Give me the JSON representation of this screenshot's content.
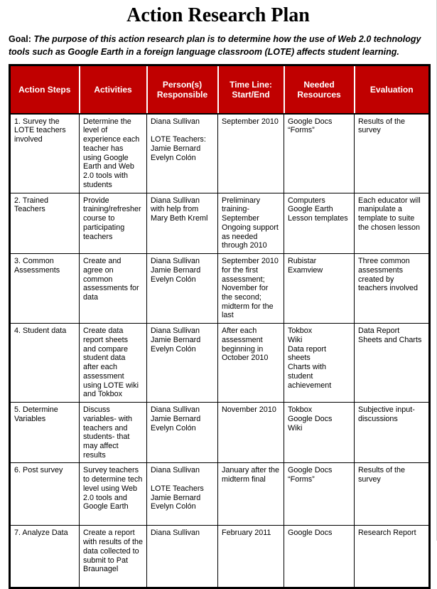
{
  "page": {
    "title": "Action Research Plan",
    "goal_label": "Goal:",
    "goal_text": "The purpose of this action research plan is to determine how the use of Web 2.0 technology tools such as Google Earth in a foreign language classroom (LOTE) affects student learning."
  },
  "table": {
    "header_bg": "#c00000",
    "columns": [
      "Action Steps",
      "Activities",
      "Person(s) Responsible",
      "Time Line: Start/End",
      "Needed Resources",
      "Evaluation"
    ],
    "rows": [
      {
        "cells": [
          "1. Survey the LOTE teachers involved",
          "Determine the level of experience each teacher has using Google Earth and Web 2.0 tools with students",
          "Diana Sullivan\n\nLOTE Teachers:\nJamie Bernard\nEvelyn Colón",
          "September 2010",
          "Google Docs\n“Forms”",
          "Results of the survey"
        ]
      },
      {
        "cells": [
          "2. Trained Teachers",
          "Provide training/refresher course to participating teachers",
          "Diana Sullivan with help from Mary Beth Kreml",
          "Preliminary training-September Ongoing support as needed through 2010",
          "Computers\nGoogle Earth\nLesson templates",
          "Each educator will manipulate a template to suite the chosen lesson"
        ]
      },
      {
        "cells": [
          "3. Common Assessments",
          "Create and agree on common assessments for data",
          "Diana Sullivan\nJamie Bernard\nEvelyn Colón",
          "September 2010 for the first assessment; November for the second; midterm for the last",
          "Rubistar\nExamview",
          "Three common assessments created by teachers involved"
        ]
      },
      {
        "cells": [
          "4. Student data",
          "Create data report sheets and compare student data after each assessment using LOTE wiki and Tokbox",
          "Diana Sullivan\nJamie Bernard\nEvelyn Colón",
          "After each assessment beginning in October 2010",
          "Tokbox\nWiki\nData report sheets\nCharts with student achievement",
          "Data Report Sheets and Charts"
        ]
      },
      {
        "cells": [
          "5. Determine Variables",
          "Discuss variables- with teachers and students-  that may affect results",
          "Diana Sullivan\nJamie Bernard\nEvelyn Colón",
          "November 2010",
          "Tokbox\nGoogle Docs\nWiki",
          "Subjective input-discussions"
        ]
      },
      {
        "cells": [
          "6. Post survey",
          "Survey teachers to determine tech level using Web 2.0 tools and Google Earth",
          "Diana Sullivan\n\nLOTE Teachers\nJamie Bernard\nEvelyn Colón",
          "January after the midterm final",
          "Google Docs\n“Forms”",
          "Results of the survey"
        ]
      },
      {
        "cells": [
          "7. Analyze Data",
          "Create a report with results of the data collected to submit to Pat Braunagel",
          "Diana Sullivan",
          "February 2011",
          "Google Docs",
          "Research Report"
        ]
      }
    ]
  }
}
